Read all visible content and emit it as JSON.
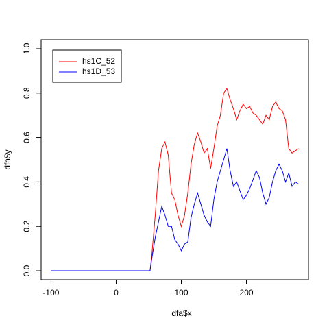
{
  "chart_data": {
    "type": "line",
    "xlabel": "dfa$x",
    "ylabel": "dfa$y",
    "x": [
      -100,
      52,
      55,
      60,
      65,
      70,
      75,
      80,
      85,
      90,
      95,
      100,
      105,
      110,
      115,
      120,
      125,
      130,
      135,
      140,
      145,
      150,
      155,
      160,
      165,
      170,
      175,
      180,
      185,
      190,
      195,
      200,
      205,
      210,
      215,
      220,
      225,
      230,
      235,
      240,
      245,
      250,
      255,
      260,
      265,
      270,
      275,
      280
    ],
    "series": [
      {
        "name": "hs1C_52",
        "color": "#ff0000",
        "values": [
          0,
          0,
          0.08,
          0.25,
          0.45,
          0.55,
          0.58,
          0.52,
          0.35,
          0.32,
          0.25,
          0.2,
          0.25,
          0.35,
          0.48,
          0.57,
          0.62,
          0.58,
          0.53,
          0.55,
          0.46,
          0.55,
          0.65,
          0.7,
          0.8,
          0.82,
          0.77,
          0.73,
          0.68,
          0.72,
          0.75,
          0.73,
          0.74,
          0.71,
          0.7,
          0.68,
          0.66,
          0.7,
          0.68,
          0.74,
          0.76,
          0.73,
          0.72,
          0.68,
          0.55,
          0.53,
          0.54,
          0.55
        ]
      },
      {
        "name": "hs1D_53",
        "color": "#0000ff",
        "values": [
          0,
          0,
          0.06,
          0.15,
          0.22,
          0.29,
          0.25,
          0.2,
          0.2,
          0.14,
          0.12,
          0.09,
          0.12,
          0.13,
          0.24,
          0.3,
          0.35,
          0.3,
          0.25,
          0.22,
          0.2,
          0.32,
          0.4,
          0.45,
          0.5,
          0.55,
          0.45,
          0.38,
          0.4,
          0.36,
          0.32,
          0.34,
          0.37,
          0.41,
          0.45,
          0.42,
          0.35,
          0.3,
          0.33,
          0.4,
          0.45,
          0.48,
          0.45,
          0.4,
          0.44,
          0.38,
          0.4,
          0.39
        ]
      }
    ],
    "xlim": [
      -115.2,
      295.2
    ],
    "xticks": [
      -100,
      0,
      100,
      200
    ],
    "ylim": [
      -0.04,
      1.04
    ],
    "yticks": [
      {
        "value": 0,
        "label": "0.0"
      },
      {
        "value": 0.2,
        "label": "0.2"
      },
      {
        "value": 0.4,
        "label": "0.4"
      },
      {
        "value": 0.6,
        "label": "0.6"
      },
      {
        "value": 0.8,
        "label": "0.8"
      },
      {
        "value": 1,
        "label": "1.0"
      }
    ],
    "legend": "top-left"
  }
}
